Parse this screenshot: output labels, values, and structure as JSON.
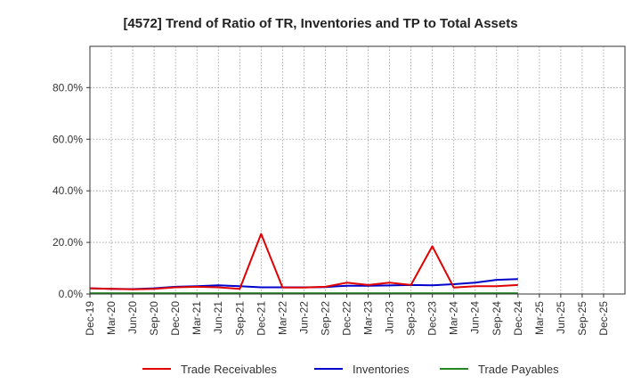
{
  "chart_data": {
    "type": "line",
    "title": "[4572]  Trend of Ratio of TR, Inventories and TP to Total Assets",
    "xlabel": "",
    "ylabel": "",
    "x": [
      "Dec-19",
      "Mar-20",
      "Jun-20",
      "Sep-20",
      "Dec-20",
      "Mar-21",
      "Jun-21",
      "Sep-21",
      "Dec-21",
      "Mar-22",
      "Jun-22",
      "Sep-22",
      "Dec-22",
      "Mar-23",
      "Jun-23",
      "Sep-23",
      "Dec-23",
      "Mar-24",
      "Jun-24",
      "Sep-24",
      "Dec-24"
    ],
    "x_ticks": [
      "Dec-19",
      "Mar-20",
      "Jun-20",
      "Sep-20",
      "Dec-20",
      "Mar-21",
      "Jun-21",
      "Sep-21",
      "Dec-21",
      "Mar-22",
      "Jun-22",
      "Sep-22",
      "Dec-22",
      "Mar-23",
      "Jun-23",
      "Sep-23",
      "Dec-23",
      "Mar-24",
      "Jun-24",
      "Sep-24",
      "Dec-24",
      "Mar-25",
      "Jun-25",
      "Sep-25",
      "Dec-25"
    ],
    "ylim": [
      0,
      96
    ],
    "y_ticks": [
      0,
      20,
      40,
      60,
      80
    ],
    "y_tick_labels": [
      "0.0%",
      "20.0%",
      "40.0%",
      "60.0%",
      "80.0%"
    ],
    "grid": true,
    "legend_position": "bottom",
    "series": [
      {
        "name": "Trade Receivables",
        "color": "#e00000",
        "values": [
          2.2,
          2.0,
          1.8,
          2.0,
          2.6,
          2.8,
          2.6,
          2.0,
          23.3,
          2.5,
          2.5,
          2.8,
          4.4,
          3.5,
          4.4,
          3.5,
          18.5,
          2.5,
          3.0,
          3.0,
          3.5
        ]
      },
      {
        "name": "Inventories",
        "color": "#0000cc",
        "values": [
          2.2,
          2.0,
          1.9,
          2.2,
          2.8,
          3.0,
          3.4,
          3.0,
          2.6,
          2.6,
          2.6,
          2.7,
          3.2,
          3.2,
          3.3,
          3.5,
          3.4,
          3.8,
          4.4,
          5.5,
          5.8
        ]
      },
      {
        "name": "Trade Payables",
        "color": "#228822",
        "values": [
          0.3,
          0.3,
          0.3,
          0.3,
          0.3,
          0.3,
          0.3,
          0.3,
          0.3,
          0.3,
          0.3,
          0.3,
          0.3,
          0.3,
          0.3,
          0.3,
          0.3,
          0.3,
          0.3,
          0.3,
          0.3
        ]
      }
    ]
  }
}
